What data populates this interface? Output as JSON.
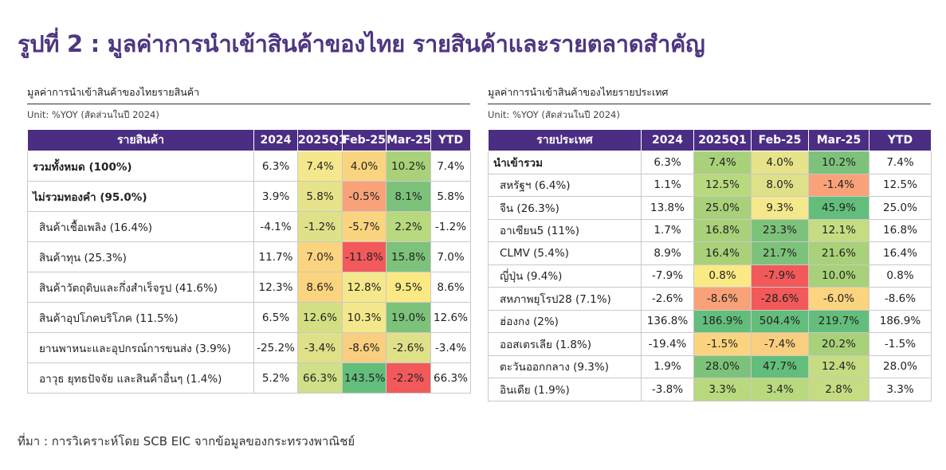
{
  "title": "รูปที่ 2 : มูลค่าการนำเข้าสินค้าของไทย รายสินค้าและรายตลาดสำคัญ",
  "left_panel": {
    "title": "มูลค่าการนำเข้าสินค้าของไทยรายสินค้า",
    "unit": "Unit: %YOY (สัดส่วนในปี 2024)",
    "headers": [
      "รายสินค้า",
      "2024",
      "2025Q1",
      "Feb-25",
      "Mar-25",
      "YTD"
    ],
    "rows": [
      {
        "name": "รวมทั้งหมด (100%)",
        "bold": true,
        "indent": false,
        "values": [
          "6.3%",
          "7.4%",
          "4.0%",
          "10.2%",
          "7.4%"
        ],
        "colors": [
          "#ffffff",
          "#f5e88c",
          "#fbd47f",
          "#a9d179",
          "#ffffff"
        ]
      },
      {
        "name": "ไม่รวมทองคำ (95.0%)",
        "bold": true,
        "indent": false,
        "values": [
          "3.9%",
          "5.8%",
          "-0.5%",
          "8.1%",
          "5.8%"
        ],
        "colors": [
          "#ffffff",
          "#e6e38a",
          "#f9a27a",
          "#7dc27a",
          "#ffffff"
        ]
      },
      {
        "name": "สินค้าเชื้อเพลิง (16.4%)",
        "bold": false,
        "indent": true,
        "values": [
          "-4.1%",
          "-1.2%",
          "-5.7%",
          "2.2%",
          "-1.2%"
        ],
        "colors": [
          "#ffffff",
          "#dfe189",
          "#fbd47f",
          "#b9d97f",
          "#ffffff"
        ]
      },
      {
        "name": "สินค้าทุน (25.3%)",
        "bold": false,
        "indent": true,
        "values": [
          "11.7%",
          "7.0%",
          "-11.8%",
          "15.8%",
          "7.0%"
        ],
        "colors": [
          "#ffffff",
          "#fbd47f",
          "#f2595a",
          "#7dc27a",
          "#ffffff"
        ]
      },
      {
        "name": "สินค้าวัตถุดิบและกึ่งสำเร็จรูป (41.6%)",
        "bold": false,
        "indent": true,
        "values": [
          "12.3%",
          "8.6%",
          "12.8%",
          "9.5%",
          "8.6%"
        ],
        "colors": [
          "#ffffff",
          "#fbd47f",
          "#f5e88c",
          "#fbe984",
          "#ffffff"
        ]
      },
      {
        "name": "สินค้าอุปโภคบริโภค (11.5%)",
        "bold": false,
        "indent": true,
        "values": [
          "6.5%",
          "12.6%",
          "10.3%",
          "19.0%",
          "12.6%"
        ],
        "colors": [
          "#ffffff",
          "#d4df84",
          "#f5e88c",
          "#7dc27a",
          "#ffffff"
        ]
      },
      {
        "name": "ยานพาหนะและอุปกรณ์การขนส่ง (3.9%)",
        "bold": false,
        "indent": true,
        "values": [
          "-25.2%",
          "-3.4%",
          "-8.6%",
          "-2.6%",
          "-3.4%"
        ],
        "colors": [
          "#ffffff",
          "#dfe189",
          "#f9cf7f",
          "#dfe189",
          "#ffffff"
        ]
      },
      {
        "name": "อาวุธ ยุทธปัจจัย และสินค้าอื่นๆ (1.4%)",
        "bold": false,
        "indent": true,
        "values": [
          "5.2%",
          "66.3%",
          "143.5%",
          "-2.2%",
          "66.3%"
        ],
        "colors": [
          "#ffffff",
          "#cfe088",
          "#63be7b",
          "#f2595a",
          "#ffffff"
        ]
      }
    ]
  },
  "right_panel": {
    "title": "มูลค่าการนำเข้าสินค้าของไทยรายประเทศ",
    "unit": "Unit: %YOY (สัดส่วนในปี 2024)",
    "headers": [
      "รายประเทศ",
      "2024",
      "2025Q1",
      "Feb-25",
      "Mar-25",
      "YTD"
    ],
    "rows": [
      {
        "name": "นำเข้ารวม",
        "bold": true,
        "indent": false,
        "values": [
          "6.3%",
          "7.4%",
          "4.0%",
          "10.2%",
          "7.4%"
        ],
        "colors": [
          "#ffffff",
          "#a9d179",
          "#e6e38a",
          "#7dc27a",
          "#ffffff"
        ]
      },
      {
        "name": "สหรัฐฯ (6.4%)",
        "bold": false,
        "indent": true,
        "values": [
          "1.1%",
          "12.5%",
          "8.0%",
          "-1.4%",
          "12.5%"
        ],
        "colors": [
          "#ffffff",
          "#b9d97f",
          "#dfe189",
          "#f9a27a",
          "#ffffff"
        ]
      },
      {
        "name": "จีน (26.3%)",
        "bold": false,
        "indent": true,
        "values": [
          "13.8%",
          "25.0%",
          "9.3%",
          "45.9%",
          "25.0%"
        ],
        "colors": [
          "#ffffff",
          "#a9d179",
          "#f5e88c",
          "#63be7b",
          "#ffffff"
        ]
      },
      {
        "name": "อาเซียน5 (11%)",
        "bold": false,
        "indent": true,
        "values": [
          "1.7%",
          "16.8%",
          "23.3%",
          "12.1%",
          "16.8%"
        ],
        "colors": [
          "#ffffff",
          "#a9d179",
          "#7dc27a",
          "#c6dc82",
          "#ffffff"
        ]
      },
      {
        "name": "CLMV (5.4%)",
        "bold": false,
        "indent": true,
        "values": [
          "8.9%",
          "16.4%",
          "21.7%",
          "21.6%",
          "16.4%"
        ],
        "colors": [
          "#ffffff",
          "#a9d179",
          "#7dc27a",
          "#a9d179",
          "#ffffff"
        ]
      },
      {
        "name": "ญี่ปุ่น (9.4%)",
        "bold": false,
        "indent": true,
        "values": [
          "-7.9%",
          "0.8%",
          "-7.9%",
          "10.0%",
          "0.8%"
        ],
        "colors": [
          "#ffffff",
          "#fbe984",
          "#f2595a",
          "#a9d179",
          "#ffffff"
        ]
      },
      {
        "name": "สหภาพยุโรป28 (7.1%)",
        "bold": false,
        "indent": true,
        "values": [
          "-2.6%",
          "-8.6%",
          "-28.6%",
          "-6.0%",
          "-8.6%"
        ],
        "colors": [
          "#ffffff",
          "#f9a27a",
          "#f2595a",
          "#fbd47f",
          "#ffffff"
        ]
      },
      {
        "name": "ฮ่องกง (2%)",
        "bold": false,
        "indent": true,
        "values": [
          "136.8%",
          "186.9%",
          "504.4%",
          "219.7%",
          "186.9%"
        ],
        "colors": [
          "#ffffff",
          "#63be7b",
          "#63be7b",
          "#63be7b",
          "#ffffff"
        ]
      },
      {
        "name": "ออสเตรเลีย (1.8%)",
        "bold": false,
        "indent": true,
        "values": [
          "-19.4%",
          "-1.5%",
          "-7.4%",
          "20.2%",
          "-1.5%"
        ],
        "colors": [
          "#ffffff",
          "#fbd47f",
          "#f9cf7f",
          "#a9d179",
          "#ffffff"
        ]
      },
      {
        "name": "ตะวันออกกลาง (9.3%)",
        "bold": false,
        "indent": true,
        "values": [
          "1.9%",
          "28.0%",
          "47.7%",
          "12.4%",
          "28.0%"
        ],
        "colors": [
          "#ffffff",
          "#7dc27a",
          "#63be7b",
          "#c6dc82",
          "#ffffff"
        ]
      },
      {
        "name": "อินเดีย (1.9%)",
        "bold": false,
        "indent": true,
        "values": [
          "-3.8%",
          "3.3%",
          "3.4%",
          "2.8%",
          "3.3%"
        ],
        "colors": [
          "#ffffff",
          "#b9d97f",
          "#b9d97f",
          "#c6dc82",
          "#ffffff"
        ]
      }
    ]
  },
  "footer": "ที่มา : การวิเคราะห์โดย SCB EIC จากข้อมูลของกระทรวงพาณิชย์"
}
